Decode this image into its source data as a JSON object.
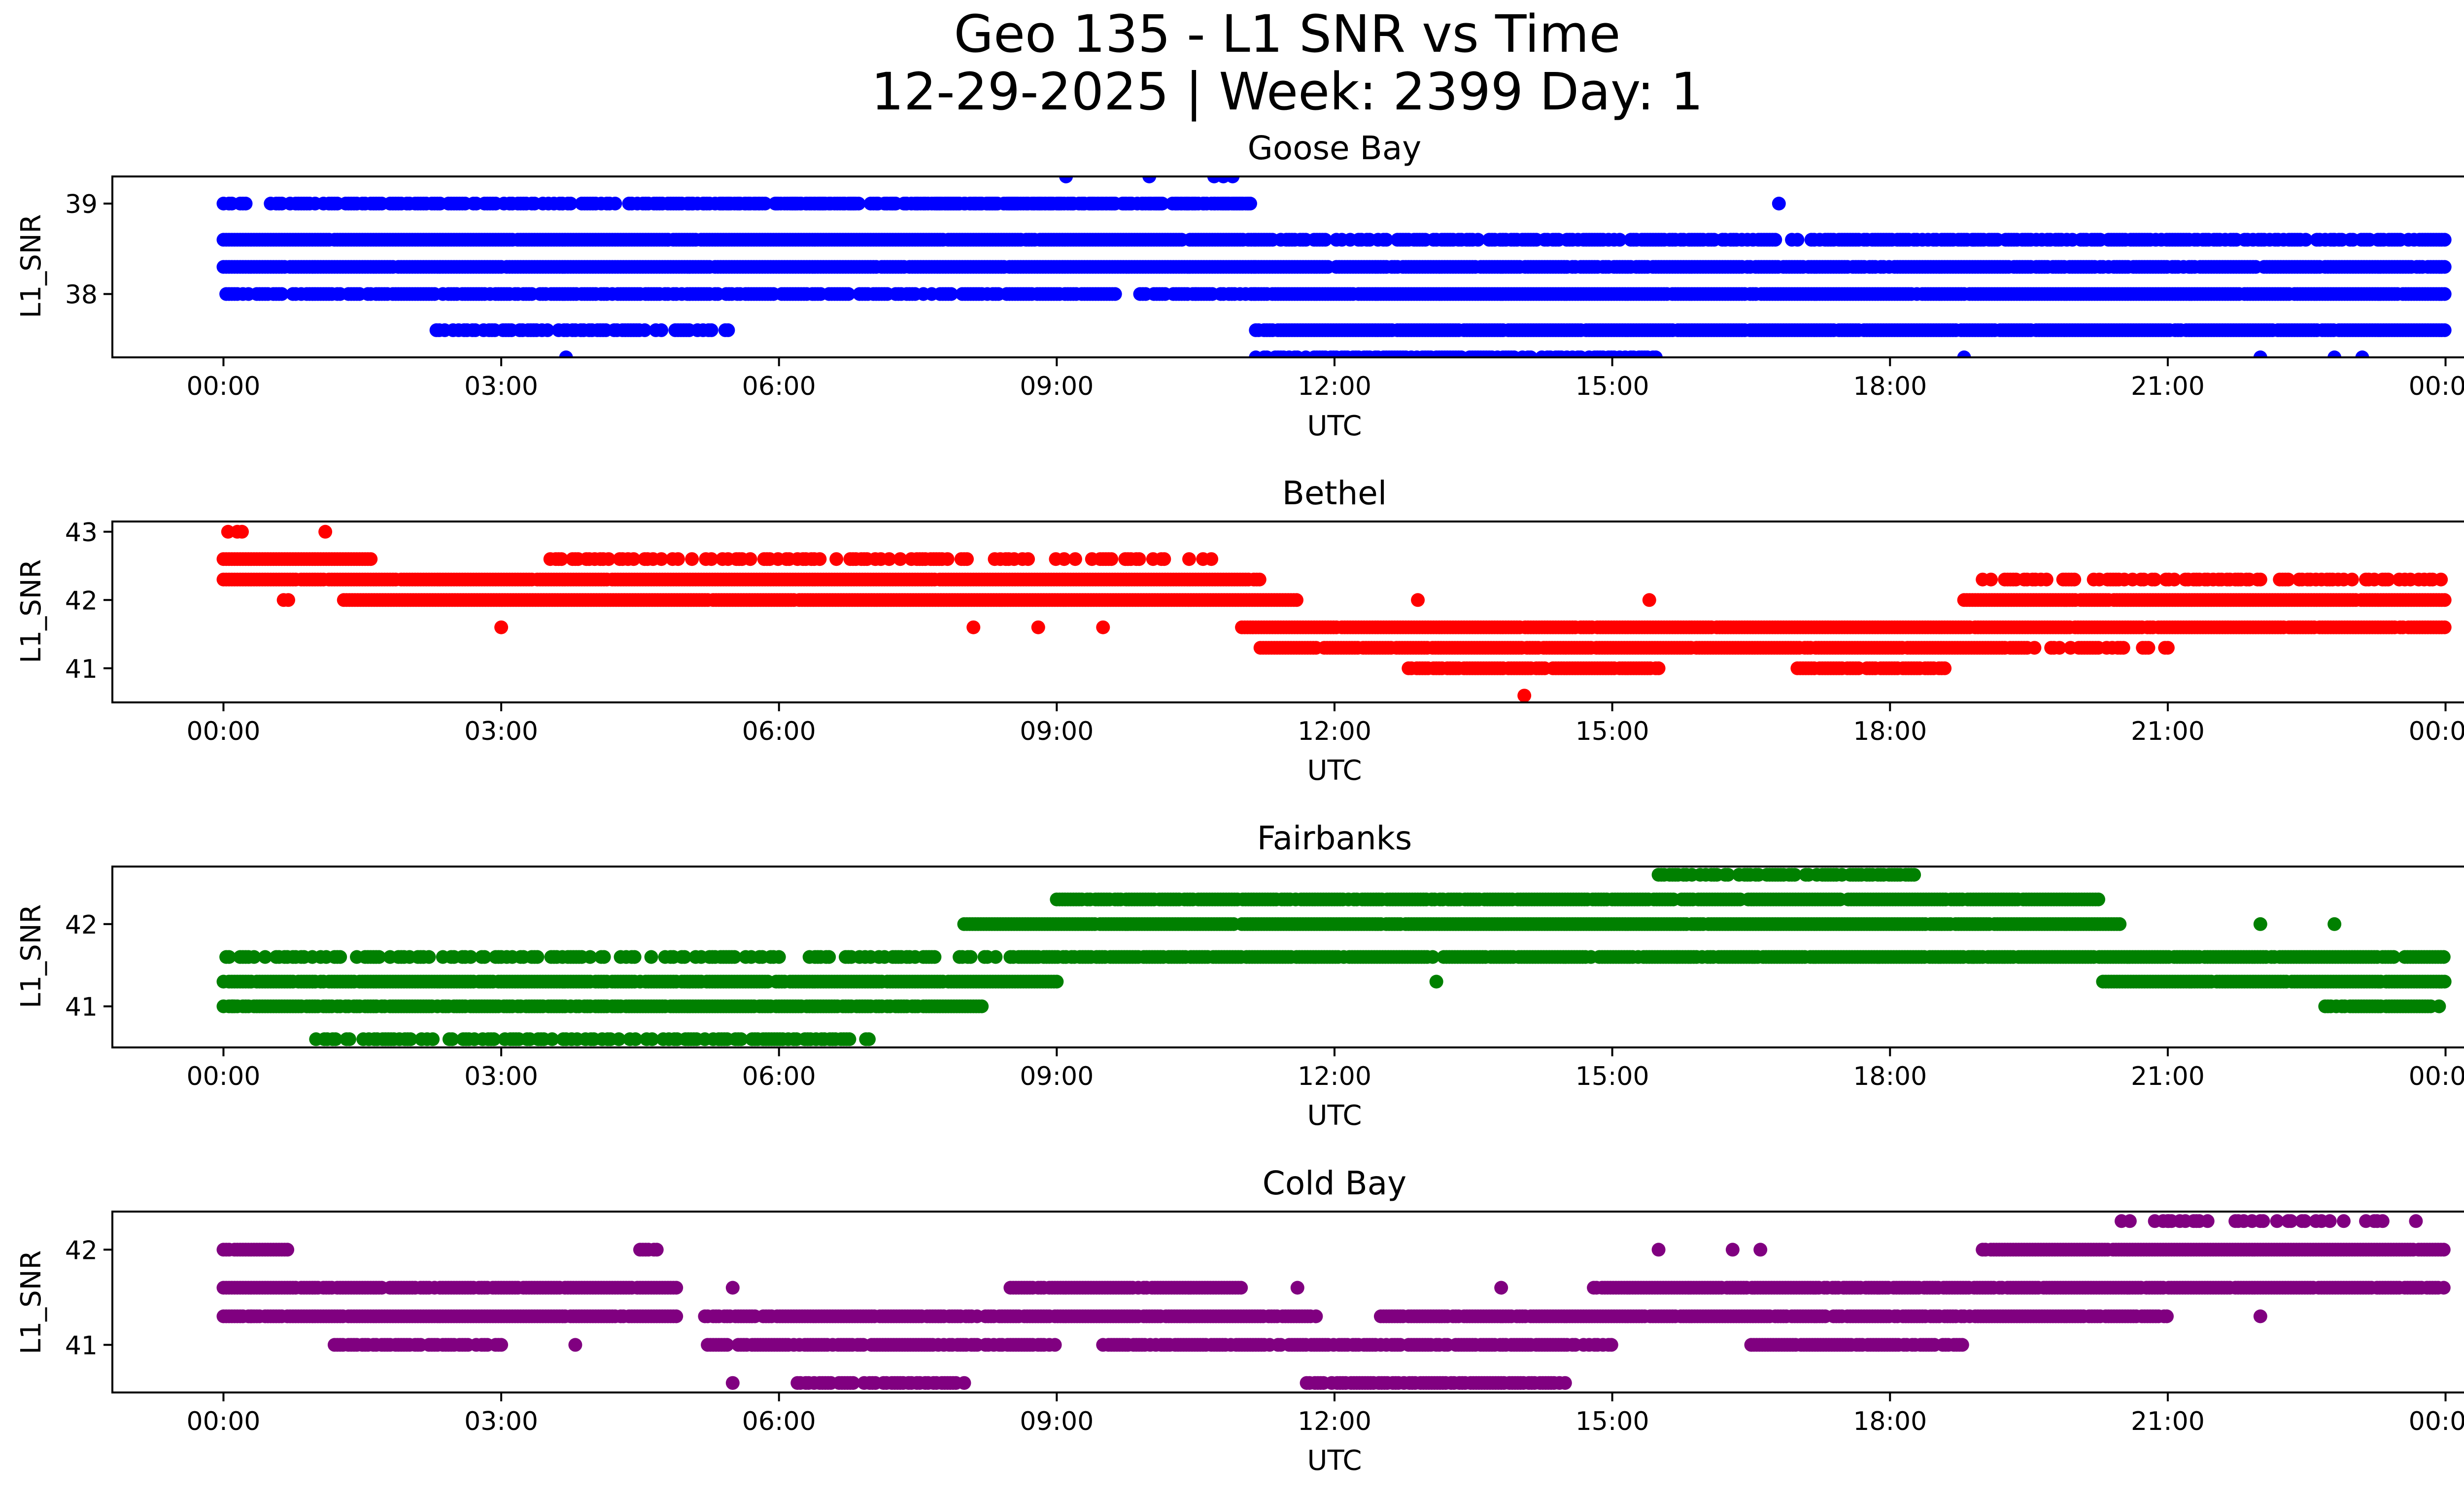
{
  "figure": {
    "title_line1": "Geo 135 - L1 SNR vs Time",
    "title_line2": "12-29-2025 | Week: 2399 Day: 1"
  },
  "chart_data": [
    {
      "type": "scatter",
      "title": "Goose Bay",
      "xlabel": "UTC",
      "ylabel": "L1_SNR",
      "color": "#0000ff",
      "xlim": [
        -1.2,
        25.2
      ],
      "ylim": [
        37.3,
        39.3
      ],
      "yticks": [
        38,
        39
      ],
      "xticks": [
        0,
        3,
        6,
        9,
        12,
        15,
        18,
        21,
        24
      ],
      "xtick_labels": [
        "00:00",
        "03:00",
        "06:00",
        "09:00",
        "12:00",
        "15:00",
        "18:00",
        "21:00",
        "00:00"
      ],
      "series": [
        {
          "runs": [
            [
              0.0,
              11.15,
              38.6,
              0.02
            ],
            [
              0.0,
              11.15,
              38.3,
              0.02
            ],
            [
              0.0,
              11.15,
              38.0,
              0.25
            ],
            [
              0.0,
              11.15,
              39.0,
              0.35
            ],
            [
              2.3,
              5.5,
              37.6,
              0.3
            ],
            [
              5.0,
              11.15,
              39.0,
              0.5
            ]
          ]
        },
        {
          "runs": [
            [
              11.15,
              24.0,
              38.0,
              0.02
            ],
            [
              11.15,
              24.0,
              38.3,
              0.1
            ],
            [
              11.15,
              24.0,
              37.6,
              0.04
            ],
            [
              11.15,
              24.0,
              38.6,
              0.35
            ],
            [
              11.15,
              15.5,
              37.3,
              0.3
            ]
          ]
        }
      ],
      "points": [
        [
          9.1,
          39.3
        ],
        [
          10.0,
          39.3
        ],
        [
          10.7,
          39.3
        ],
        [
          10.8,
          39.3
        ],
        [
          10.9,
          39.3
        ],
        [
          3.7,
          37.3
        ],
        [
          16.8,
          39.0
        ],
        [
          18.8,
          37.3
        ],
        [
          22.0,
          37.3
        ],
        [
          22.8,
          37.3
        ],
        [
          23.1,
          37.3
        ],
        [
          18.9,
          38.6
        ],
        [
          22.8,
          38.6
        ],
        [
          4.8,
          38.6
        ],
        [
          10.5,
          38.0
        ]
      ]
    },
    {
      "type": "scatter",
      "title": "Bethel",
      "xlabel": "UTC",
      "ylabel": "L1_SNR",
      "color": "#ff0000",
      "xlim": [
        -1.2,
        25.2
      ],
      "ylim": [
        40.5,
        43.15
      ],
      "yticks": [
        41,
        42,
        43
      ],
      "xticks": [
        0,
        3,
        6,
        9,
        12,
        15,
        18,
        21,
        24
      ],
      "xtick_labels": [
        "00:00",
        "03:00",
        "06:00",
        "09:00",
        "12:00",
        "15:00",
        "18:00",
        "21:00",
        "00:00"
      ],
      "series": [
        {
          "runs": [
            [
              0.0,
              1.6,
              42.6,
              0.02
            ],
            [
              0.0,
              11.2,
              42.3,
              0.02
            ],
            [
              1.3,
              11.6,
              42.0,
              0.02
            ],
            [
              3.5,
              10.7,
              42.6,
              0.55
            ]
          ]
        },
        {
          "runs": [
            [
              11.0,
              24.0,
              41.6,
              0.02
            ],
            [
              11.2,
              19.5,
              41.3,
              0.05
            ],
            [
              18.8,
              24.0,
              42.0,
              0.02
            ],
            [
              12.8,
              15.5,
              41.0,
              0.1
            ],
            [
              17.0,
              18.6,
              41.0,
              0.1
            ],
            [
              19.0,
              24.0,
              42.3,
              0.5
            ],
            [
              19.5,
              21.0,
              41.3,
              0.5
            ]
          ]
        }
      ],
      "points": [
        [
          0.05,
          43.0
        ],
        [
          0.15,
          43.0
        ],
        [
          0.2,
          43.0
        ],
        [
          1.1,
          43.0
        ],
        [
          14.05,
          40.6
        ],
        [
          3.0,
          41.6
        ],
        [
          8.1,
          41.6
        ],
        [
          8.8,
          41.6
        ],
        [
          9.5,
          41.6
        ],
        [
          0.65,
          42.0
        ],
        [
          0.7,
          42.0
        ],
        [
          12.9,
          42.0
        ],
        [
          15.4,
          42.0
        ]
      ]
    },
    {
      "type": "scatter",
      "title": "Fairbanks",
      "xlabel": "UTC",
      "ylabel": "L1_SNR",
      "color": "#008000",
      "xlim": [
        -1.2,
        25.2
      ],
      "ylim": [
        40.5,
        42.7
      ],
      "yticks": [
        41,
        42
      ],
      "xticks": [
        0,
        3,
        6,
        9,
        12,
        15,
        18,
        21,
        24
      ],
      "xtick_labels": [
        "00:00",
        "03:00",
        "06:00",
        "09:00",
        "12:00",
        "15:00",
        "18:00",
        "21:00",
        "00:00"
      ],
      "series": [
        {
          "runs": [
            [
              0.0,
              9.0,
              41.3,
              0.05
            ],
            [
              0.0,
              8.2,
              41.0,
              0.1
            ],
            [
              0.0,
              8.5,
              41.6,
              0.55
            ],
            [
              1.0,
              7.0,
              40.6,
              0.45
            ]
          ]
        },
        {
          "runs": [
            [
              8.0,
              20.5,
              42.0,
              0.03
            ],
            [
              9.0,
              20.3,
              42.3,
              0.08
            ],
            [
              8.5,
              24.0,
              41.6,
              0.1
            ],
            [
              15.5,
              18.3,
              42.6,
              0.4
            ],
            [
              20.3,
              24.0,
              41.3,
              0.05
            ],
            [
              22.7,
              24.0,
              41.0,
              0.2
            ]
          ]
        }
      ],
      "points": [
        [
          13.1,
          41.3
        ],
        [
          15.7,
          41.6
        ],
        [
          18.9,
          41.6
        ],
        [
          22.0,
          42.0
        ],
        [
          22.8,
          42.0
        ],
        [
          0.1,
          41.0
        ]
      ]
    },
    {
      "type": "scatter",
      "title": "Cold Bay",
      "xlabel": "UTC",
      "ylabel": "L1_SNR",
      "color": "#800080",
      "xlim": [
        -1.2,
        25.2
      ],
      "ylim": [
        40.5,
        42.4
      ],
      "yticks": [
        41,
        42
      ],
      "xticks": [
        0,
        3,
        6,
        9,
        12,
        15,
        18,
        21,
        24
      ],
      "xtick_labels": [
        "00:00",
        "03:00",
        "06:00",
        "09:00",
        "12:00",
        "15:00",
        "18:00",
        "21:00",
        "00:00"
      ],
      "series": [
        {
          "runs": [
            [
              0.0,
              4.9,
              41.6,
              0.05
            ],
            [
              0.0,
              4.9,
              41.3,
              0.05
            ],
            [
              0.0,
              0.7,
              42.0,
              0.1
            ],
            [
              1.2,
              3.0,
              41.0,
              0.3
            ],
            [
              4.5,
              4.7,
              42.0,
              0.3
            ],
            [
              5.2,
              11.8,
              41.3,
              0.05
            ],
            [
              5.2,
              9.0,
              41.0,
              0.15
            ],
            [
              8.5,
              11.0,
              41.6,
              0.1
            ],
            [
              6.2,
              8.0,
              40.6,
              0.3
            ],
            [
              9.5,
              15.0,
              41.0,
              0.2
            ]
          ]
        },
        {
          "runs": [
            [
              11.7,
              14.5,
              40.6,
              0.2
            ],
            [
              12.5,
              21.0,
              41.3,
              0.05
            ],
            [
              14.8,
              17.5,
              41.6,
              0.1
            ],
            [
              16.5,
              18.8,
              41.0,
              0.15
            ],
            [
              17.5,
              24.0,
              41.6,
              0.05
            ],
            [
              19.0,
              24.0,
              42.0,
              0.03
            ],
            [
              20.5,
              24.0,
              42.3,
              0.7
            ]
          ]
        }
      ],
      "points": [
        [
          0.3,
          41.3
        ],
        [
          3.8,
          41.0
        ],
        [
          5.5,
          40.6
        ],
        [
          5.5,
          41.6
        ],
        [
          11.6,
          41.6
        ],
        [
          13.8,
          41.6
        ],
        [
          15.5,
          42.0
        ],
        [
          16.3,
          42.0
        ],
        [
          16.6,
          42.0
        ],
        [
          22.0,
          41.3
        ],
        [
          21.0,
          42.3
        ]
      ]
    }
  ]
}
